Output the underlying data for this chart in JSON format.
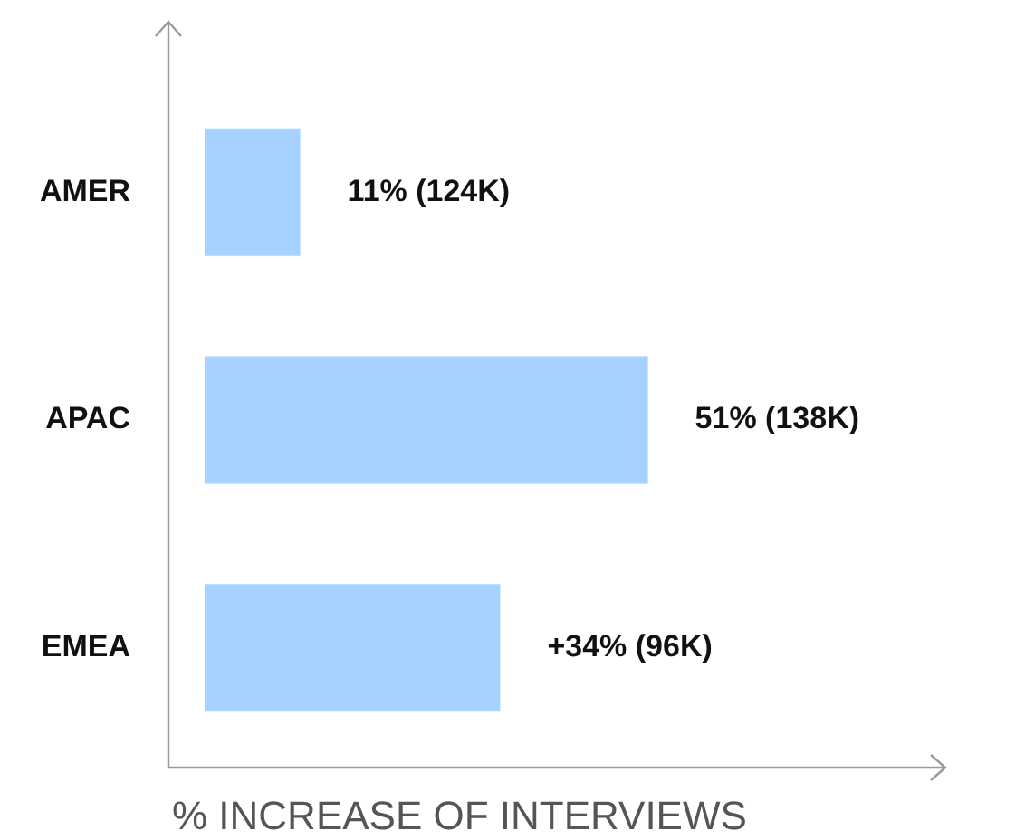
{
  "chart_data": {
    "type": "bar",
    "orientation": "horizontal",
    "xlabel": "% INCREASE OF INTERVIEWS",
    "categories": [
      "AMER",
      "APAC",
      "EMEA"
    ],
    "values": [
      11,
      51,
      34
    ],
    "value_labels": [
      "11% (124K)",
      "51% (138K)",
      "+34% (96K)"
    ],
    "color": "#a5d2ff"
  }
}
